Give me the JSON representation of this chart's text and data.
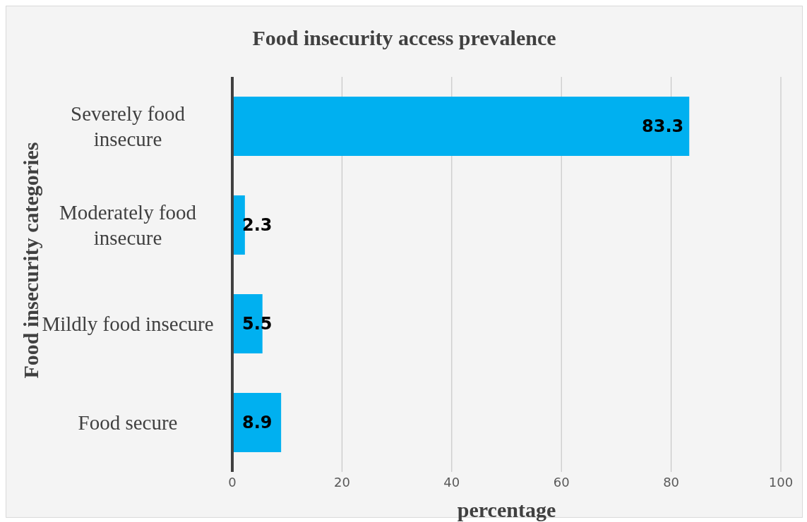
{
  "chart_data": {
    "type": "bar",
    "orientation": "horizontal",
    "title": "Food insecurity access prevalence",
    "xlabel": "percentage",
    "ylabel": "Food insecurity categories",
    "categories": [
      "Severely food insecure",
      "Moderately food insecure",
      "Mildly food insecure",
      "Food secure"
    ],
    "values": [
      83.3,
      2.3,
      5.5,
      8.9
    ],
    "color": "#00b0f0",
    "xlim": [
      0,
      100
    ],
    "xticks": [
      0,
      20,
      40,
      60,
      80,
      100
    ],
    "grid": "x",
    "data_labels": true
  }
}
